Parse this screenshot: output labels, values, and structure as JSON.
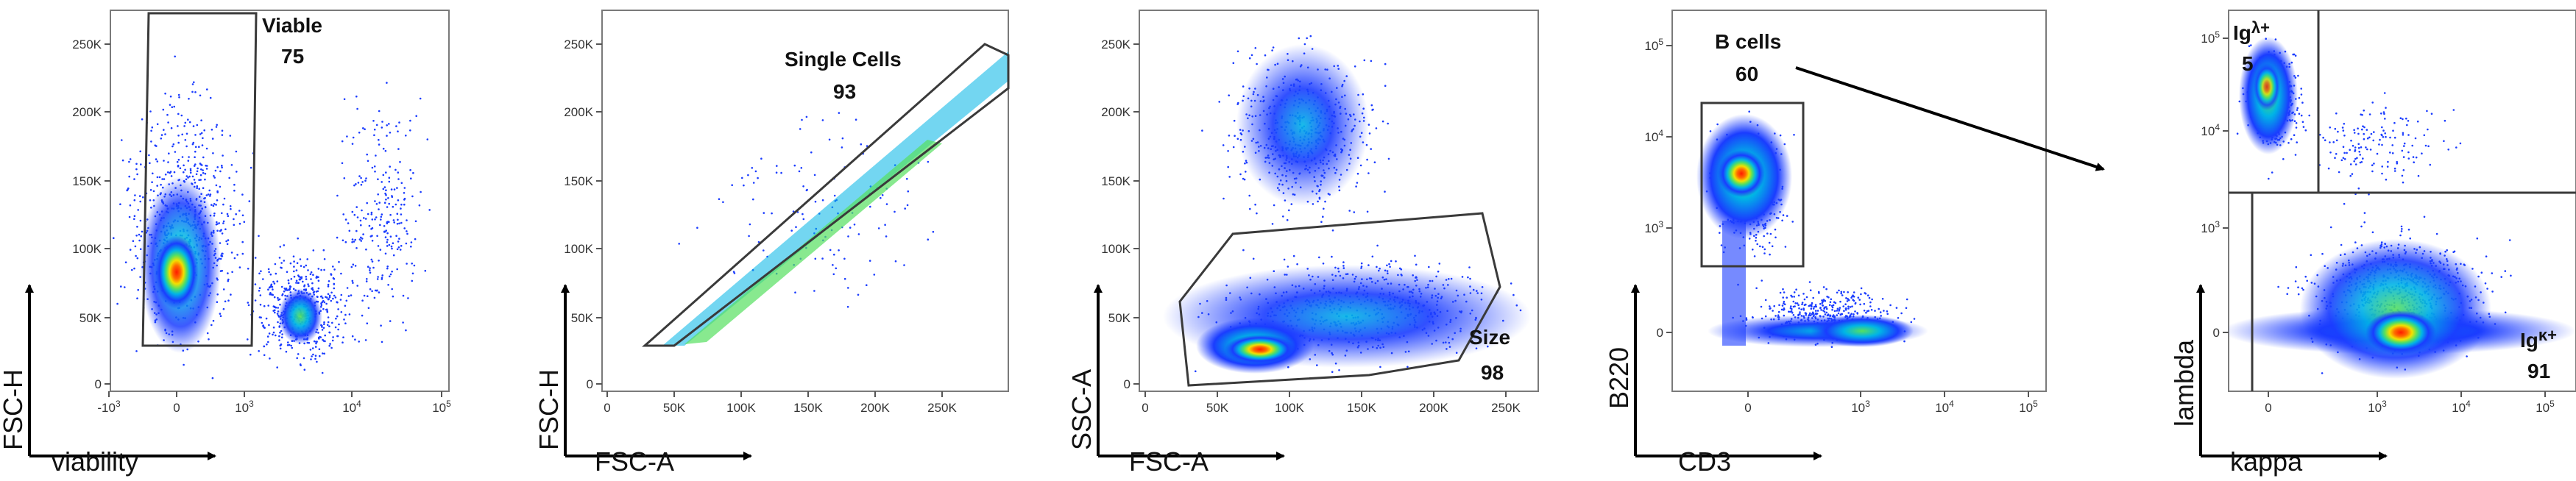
{
  "chart_data": [
    {
      "type": "scatter",
      "subtype": "flow-cytometry-density",
      "panel": 1,
      "xlabel": "viability",
      "ylabel": "FSC-H",
      "x_scale": "biexponential",
      "x_ticks": [
        {
          "base": "-10",
          "exp": "3"
        },
        {
          "base": "0",
          "exp": ""
        },
        {
          "base": "10",
          "exp": "3"
        },
        {
          "base": "10",
          "exp": "4"
        },
        {
          "base": "10",
          "exp": "5"
        }
      ],
      "y_ticks": [
        "0",
        "50K",
        "100K",
        "150K",
        "200K",
        "250K"
      ],
      "gate": {
        "name": "Viable",
        "percent": "75"
      },
      "populations": [
        "viable cells (viability ~0, FSC-H ~80K)",
        "dead cells (viability ~10^3.5, FSC-H ~50K)"
      ]
    },
    {
      "type": "scatter",
      "subtype": "flow-cytometry-density",
      "panel": 2,
      "xlabel": "FSC-A",
      "ylabel": "FSC-H",
      "x_ticks": [
        "0",
        "50K",
        "100K",
        "150K",
        "200K",
        "250K"
      ],
      "y_ticks": [
        "0",
        "50K",
        "100K",
        "150K",
        "200K",
        "250K"
      ],
      "gate": {
        "name": "Single Cells",
        "percent": "93"
      },
      "populations": [
        "diagonal singlet population from FSC-A 30K to 260K"
      ]
    },
    {
      "type": "scatter",
      "subtype": "flow-cytometry-density",
      "panel": 3,
      "xlabel": "FSC-A",
      "ylabel": "SSC-A",
      "x_ticks": [
        "0",
        "50K",
        "100K",
        "150K",
        "200K",
        "250K"
      ],
      "y_ticks": [
        "0",
        "50K",
        "100K",
        "150K",
        "200K",
        "250K"
      ],
      "gate": {
        "name": "Size",
        "percent": "98"
      },
      "populations": [
        "lymphocytes (FSC-A ~90K, SSC-A ~25K)",
        "granular cells (FSC-A ~100K, SSC-A ~180K)"
      ]
    },
    {
      "type": "scatter",
      "subtype": "flow-cytometry-density",
      "panel": 4,
      "xlabel": "CD3",
      "ylabel": "B220",
      "x_scale": "biexponential",
      "y_scale": "biexponential",
      "x_ticks": [
        {
          "base": "0",
          "exp": ""
        },
        {
          "base": "10",
          "exp": "3"
        },
        {
          "base": "10",
          "exp": "4"
        },
        {
          "base": "10",
          "exp": "5"
        }
      ],
      "y_ticks": [
        {
          "base": "0",
          "exp": ""
        },
        {
          "base": "10",
          "exp": "3"
        },
        {
          "base": "10",
          "exp": "4"
        },
        {
          "base": "10",
          "exp": "5"
        }
      ],
      "gate": {
        "name": "B cells",
        "percent": "60"
      },
      "populations": [
        "B cells (B220+ CD3-)",
        "T cells (B220- CD3+)"
      ]
    },
    {
      "type": "scatter",
      "subtype": "flow-cytometry-density",
      "panel": 5,
      "xlabel": "kappa",
      "ylabel": "lambda",
      "x_scale": "biexponential",
      "y_scale": "biexponential",
      "x_ticks": [
        {
          "base": "0",
          "exp": ""
        },
        {
          "base": "10",
          "exp": "3"
        },
        {
          "base": "10",
          "exp": "4"
        },
        {
          "base": "10",
          "exp": "5"
        }
      ],
      "y_ticks": [
        {
          "base": "0",
          "exp": ""
        },
        {
          "base": "10",
          "exp": "3"
        },
        {
          "base": "10",
          "exp": "4"
        },
        {
          "base": "10",
          "exp": "5"
        }
      ],
      "quadrants": [
        {
          "name_base": "Ig",
          "name_sup": "λ+",
          "percent": "5",
          "position": "top-left"
        },
        {
          "name_base": "Ig",
          "name_sup": "κ+",
          "percent": "91",
          "position": "bottom-right"
        }
      ],
      "populations": [
        "Igλ+ (kappa ~0, lambda ~10^4.5)",
        "Igκ+ (kappa ~10^3.5, lambda ~0)"
      ]
    }
  ]
}
